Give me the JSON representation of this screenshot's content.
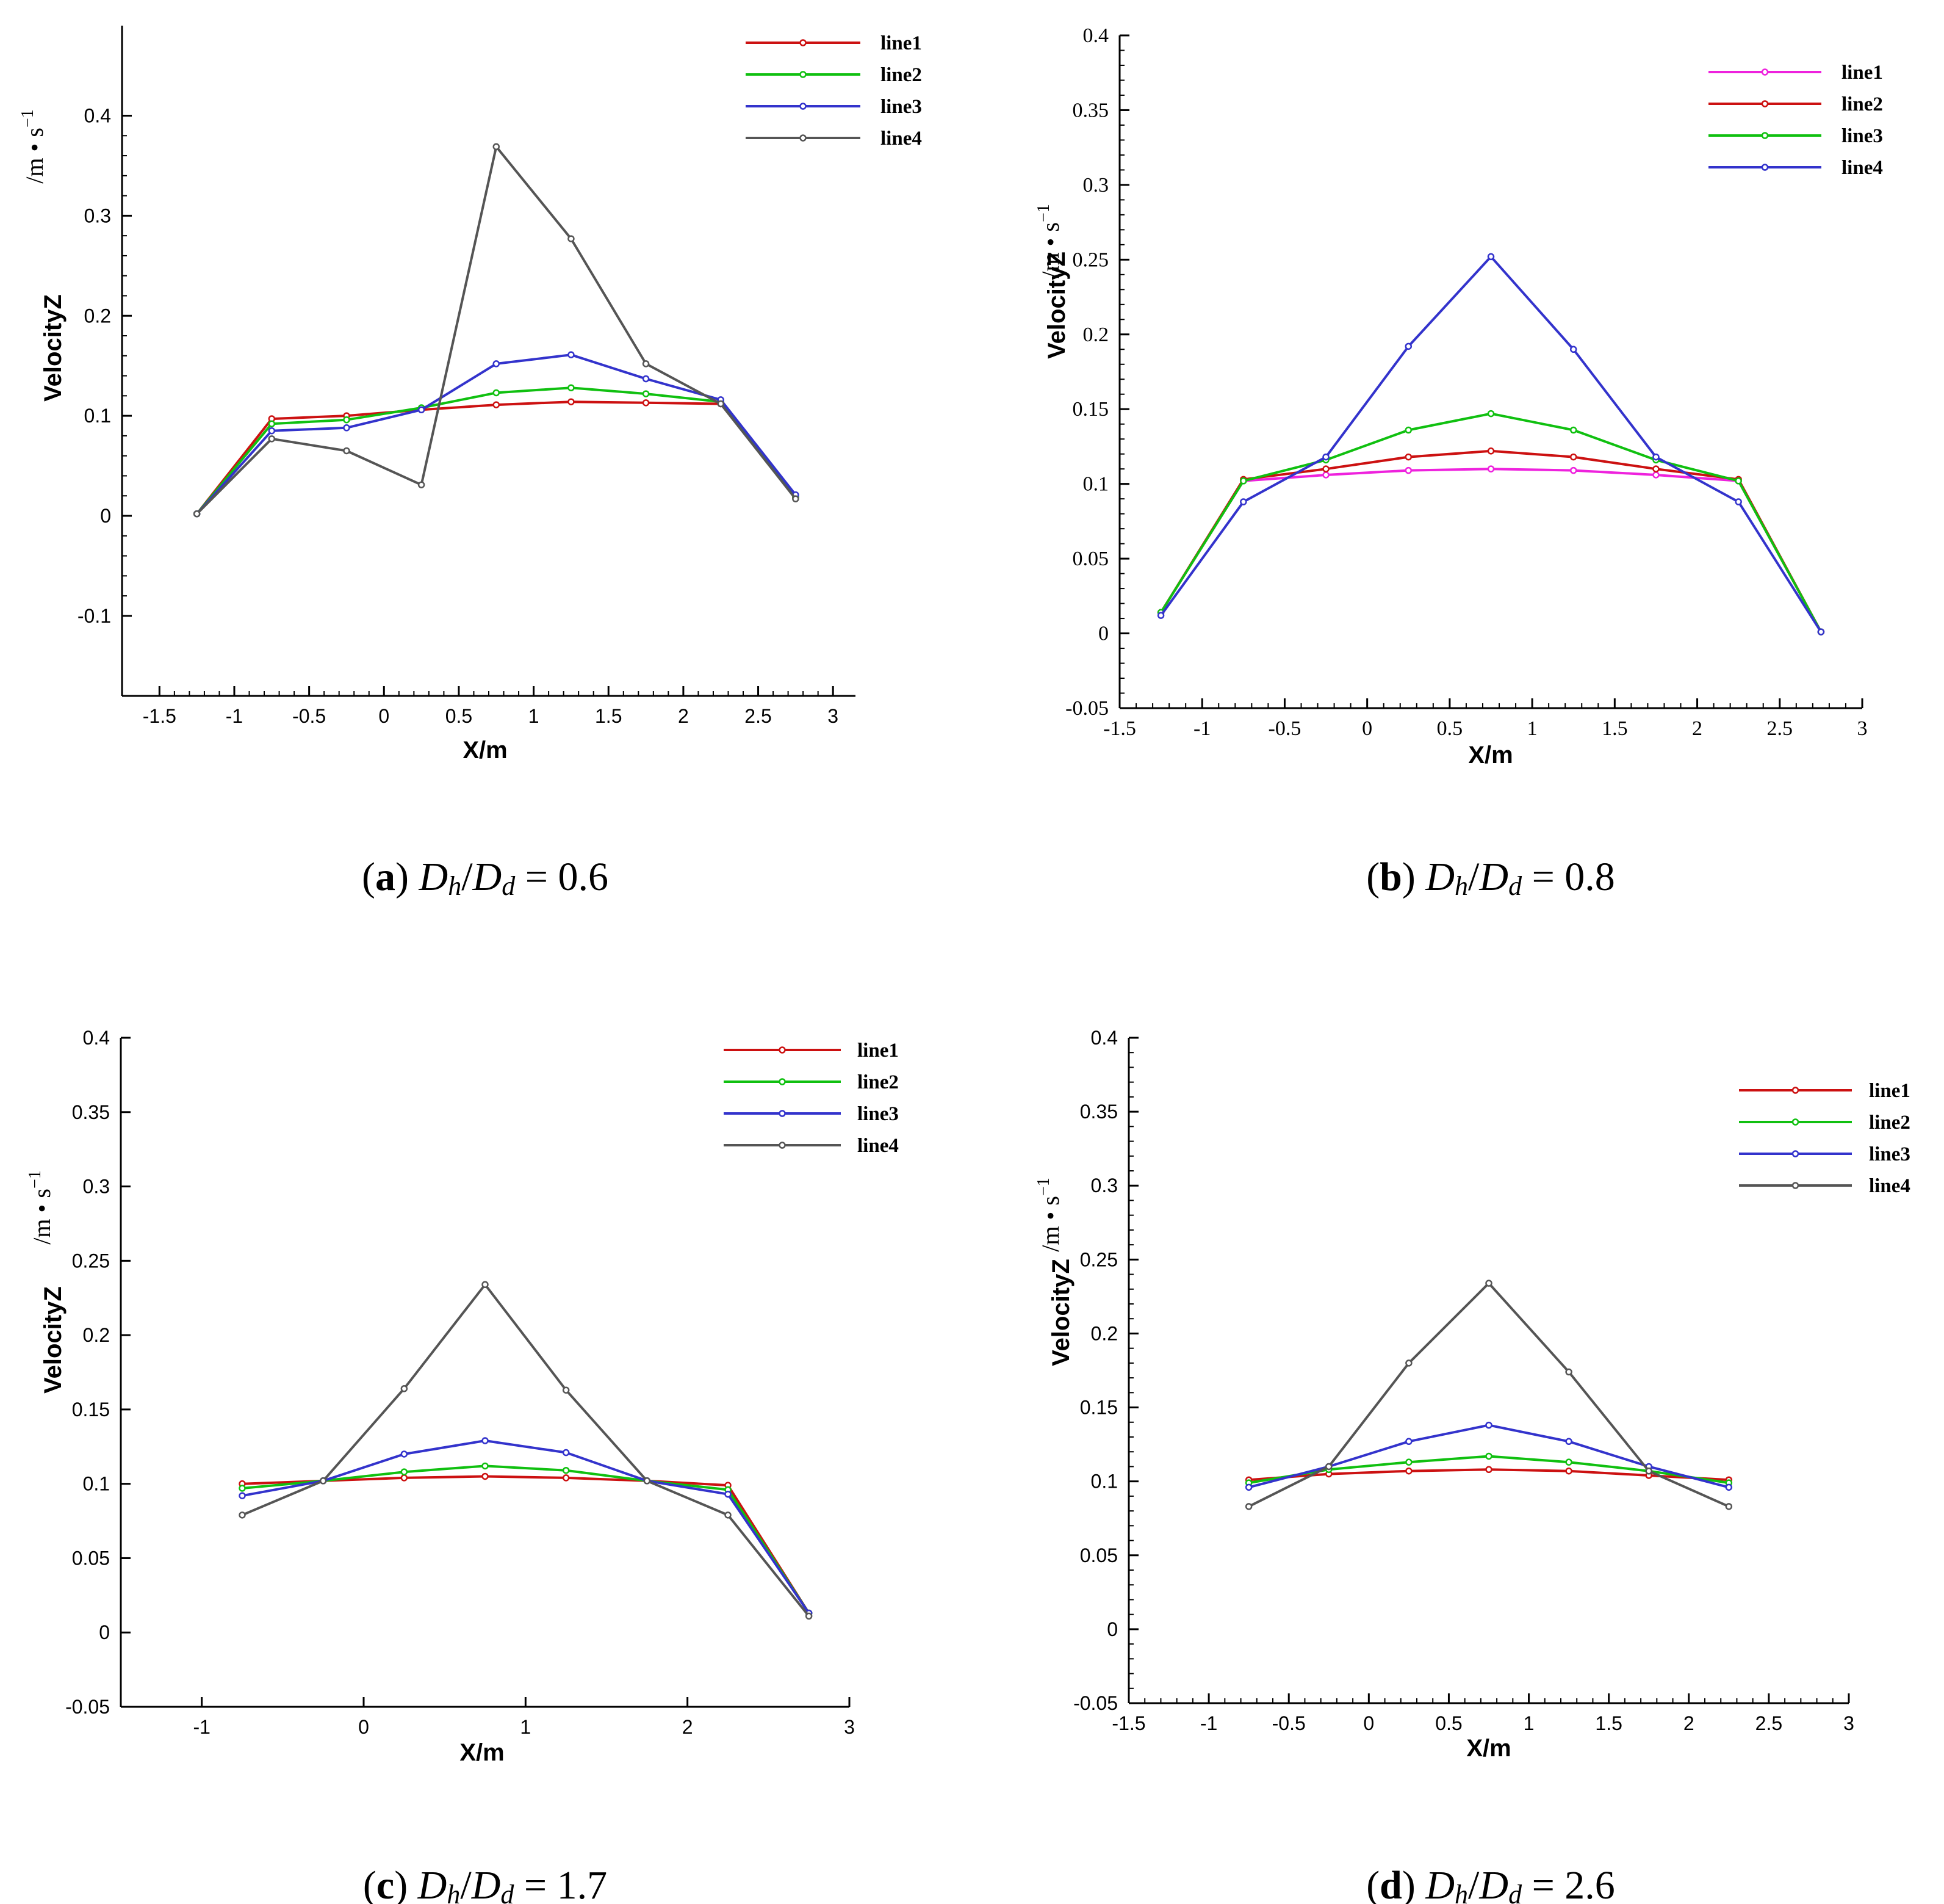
{
  "chart_data": [
    {
      "type": "line",
      "panel": "a",
      "caption": {
        "letter": "a",
        "text": "Dh/Dd = 0.6",
        "ratio_value": "0.6"
      },
      "xlabel": "X/m",
      "ylabel": "VelocityZ",
      "yunit": "/m • s",
      "yunit_exp": "−1",
      "xlim": [
        -1.75,
        3.15
      ],
      "ylim": [
        -0.18,
        0.49
      ],
      "xticks": [
        -1.5,
        -1,
        -0.5,
        0,
        0.5,
        1,
        1.5,
        2,
        2.5,
        3
      ],
      "xtick_labels": [
        "-1.5",
        "-1",
        "-0.5",
        "0",
        "0.5",
        "1",
        "1.5",
        "2",
        "2.5",
        "3"
      ],
      "yticks": [
        -0.1,
        0,
        0.1,
        0.2,
        0.3,
        0.4
      ],
      "ytick_labels": [
        "-0.1",
        "0",
        "0.1",
        "0.2",
        "0.3",
        "0.4"
      ],
      "tick_font": "sans",
      "legend_position": "top-right",
      "series": [
        {
          "name": "line1",
          "color": "#cc1111",
          "x": [
            -1.25,
            -0.75,
            -0.25,
            0.25,
            0.75,
            1.25,
            1.75,
            2.25,
            2.75
          ],
          "values": [
            0.002,
            0.097,
            0.1,
            0.106,
            0.111,
            0.114,
            0.113,
            0.112,
            0.018
          ]
        },
        {
          "name": "line2",
          "color": "#10c010",
          "x": [
            -1.25,
            -0.75,
            -0.25,
            0.25,
            0.75,
            1.25,
            1.75,
            2.25,
            2.75
          ],
          "values": [
            0.002,
            0.092,
            0.096,
            0.108,
            0.123,
            0.128,
            0.122,
            0.114,
            0.019
          ]
        },
        {
          "name": "line3",
          "color": "#3333cc",
          "x": [
            -1.25,
            -0.75,
            -0.25,
            0.25,
            0.75,
            1.25,
            1.75,
            2.25,
            2.75
          ],
          "values": [
            0.002,
            0.085,
            0.088,
            0.106,
            0.152,
            0.161,
            0.137,
            0.116,
            0.021
          ]
        },
        {
          "name": "line4",
          "color": "#555555",
          "x": [
            -1.25,
            -0.75,
            -0.25,
            0.25,
            0.75,
            1.25,
            1.75,
            2.25,
            2.75
          ],
          "values": [
            0.002,
            0.077,
            0.065,
            0.031,
            0.369,
            0.277,
            0.152,
            0.112,
            0.017
          ]
        }
      ]
    },
    {
      "type": "line",
      "panel": "b",
      "caption": {
        "letter": "b",
        "text": "Dh/Dd = 0.8",
        "ratio_value": "0.8"
      },
      "xlabel": "X/m",
      "ylabel": "VelocityZ",
      "yunit": "/m • s",
      "yunit_exp": "−1",
      "xlim": [
        -1.5,
        3
      ],
      "ylim": [
        -0.05,
        0.4
      ],
      "xticks": [
        -1.5,
        -1,
        -0.5,
        0,
        0.5,
        1,
        1.5,
        2,
        2.5,
        3
      ],
      "xtick_labels": [
        "-1.5",
        "-1",
        "-0.5",
        "0",
        "0.5",
        "1",
        "1.5",
        "2",
        "2.5",
        "3"
      ],
      "yticks": [
        -0.05,
        0,
        0.05,
        0.1,
        0.15,
        0.2,
        0.25,
        0.3,
        0.35,
        0.4
      ],
      "ytick_labels": [
        "-0.05",
        "0",
        "0.05",
        "0.1",
        "0.15",
        "0.2",
        "0.25",
        "0.3",
        "0.35",
        "0.4"
      ],
      "tick_font": "serif",
      "legend_position": "top-right",
      "series": [
        {
          "name": "line1",
          "color": "#ee22dd",
          "x": [
            -1.25,
            -0.75,
            -0.25,
            0.25,
            0.75,
            1.25,
            1.75,
            2.25,
            2.75
          ],
          "values": [
            0.014,
            0.102,
            0.106,
            0.109,
            0.11,
            0.109,
            0.106,
            0.102,
            0.001
          ]
        },
        {
          "name": "line2",
          "color": "#cc1111",
          "x": [
            -1.25,
            -0.75,
            -0.25,
            0.25,
            0.75,
            1.25,
            1.75,
            2.25,
            2.75
          ],
          "values": [
            0.014,
            0.103,
            0.11,
            0.118,
            0.122,
            0.118,
            0.11,
            0.103,
            0.001
          ]
        },
        {
          "name": "line3",
          "color": "#10c010",
          "x": [
            -1.25,
            -0.75,
            -0.25,
            0.25,
            0.75,
            1.25,
            1.75,
            2.25,
            2.75
          ],
          "values": [
            0.014,
            0.102,
            0.116,
            0.136,
            0.147,
            0.136,
            0.116,
            0.102,
            0.001
          ]
        },
        {
          "name": "line4",
          "color": "#3333cc",
          "x": [
            -1.25,
            -0.75,
            -0.25,
            0.25,
            0.75,
            1.25,
            1.75,
            2.25,
            2.75
          ],
          "values": [
            0.012,
            0.088,
            0.118,
            0.192,
            0.252,
            0.19,
            0.118,
            0.088,
            0.001
          ]
        }
      ]
    },
    {
      "type": "line",
      "panel": "c",
      "caption": {
        "letter": "c",
        "text": "Dh/Dd = 1.7",
        "ratio_value": "1.7"
      },
      "xlabel": "X/m",
      "ylabel": "VelocityZ",
      "yunit": "/m • s",
      "yunit_exp": "−1",
      "xlim": [
        -1.5,
        3
      ],
      "ylim": [
        -0.05,
        0.4
      ],
      "xticks": [
        -1,
        0,
        1,
        2,
        3
      ],
      "xtick_labels": [
        "-1",
        "0",
        "1",
        "2",
        "3"
      ],
      "yticks": [
        -0.05,
        0,
        0.05,
        0.1,
        0.15,
        0.2,
        0.25,
        0.3,
        0.35,
        0.4
      ],
      "ytick_labels": [
        "-0.05",
        "0",
        "0.05",
        "0.1",
        "0.15",
        "0.2",
        "0.25",
        "0.3",
        "0.35",
        "0.4"
      ],
      "tick_font": "sans",
      "legend_position": "top-right",
      "series": [
        {
          "name": "line1",
          "color": "#cc1111",
          "x": [
            -0.75,
            -0.25,
            0.25,
            0.75,
            1.25,
            1.75,
            2.25,
            2.75
          ],
          "values": [
            0.1,
            0.102,
            0.104,
            0.105,
            0.104,
            0.102,
            0.099,
            0.013
          ]
        },
        {
          "name": "line2",
          "color": "#10c010",
          "x": [
            -0.75,
            -0.25,
            0.25,
            0.75,
            1.25,
            1.75,
            2.25,
            2.75
          ],
          "values": [
            0.097,
            0.102,
            0.108,
            0.112,
            0.109,
            0.102,
            0.096,
            0.013
          ]
        },
        {
          "name": "line3",
          "color": "#3333cc",
          "x": [
            -0.75,
            -0.25,
            0.25,
            0.75,
            1.25,
            1.75,
            2.25,
            2.75
          ],
          "values": [
            0.092,
            0.102,
            0.12,
            0.129,
            0.121,
            0.102,
            0.093,
            0.013
          ]
        },
        {
          "name": "line4",
          "color": "#555555",
          "x": [
            -0.75,
            -0.25,
            0.25,
            0.75,
            1.25,
            1.75,
            2.25,
            2.75
          ],
          "values": [
            0.079,
            0.102,
            0.164,
            0.234,
            0.163,
            0.102,
            0.079,
            0.011
          ]
        }
      ]
    },
    {
      "type": "line",
      "panel": "d",
      "caption": {
        "letter": "d",
        "text": "Dh/Dd = 2.6",
        "ratio_value": "2.6"
      },
      "xlabel": "X/m",
      "ylabel": "VelocityZ",
      "yunit": "/m • s",
      "yunit_exp": "−1",
      "xlim": [
        -1.5,
        3
      ],
      "ylim": [
        -0.05,
        0.4
      ],
      "xticks": [
        -1.5,
        -1,
        -0.5,
        0,
        0.5,
        1,
        1.5,
        2,
        2.5,
        3
      ],
      "xtick_labels": [
        "-1.5",
        "-1",
        "-0.5",
        "0",
        "0.5",
        "1",
        "1.5",
        "2",
        "2.5",
        "3"
      ],
      "yticks": [
        -0.05,
        0,
        0.05,
        0.1,
        0.15,
        0.2,
        0.25,
        0.3,
        0.35,
        0.4
      ],
      "ytick_labels": [
        "-0.05",
        "0",
        "0.05",
        "0.1",
        "0.15",
        "0.2",
        "0.25",
        "0.3",
        "0.35",
        "0.4"
      ],
      "tick_font": "sans",
      "legend_position": "top-right",
      "series": [
        {
          "name": "line1",
          "color": "#cc1111",
          "x": [
            -0.75,
            -0.25,
            0.25,
            0.75,
            1.25,
            1.75,
            2.25
          ],
          "values": [
            0.101,
            0.105,
            0.107,
            0.108,
            0.107,
            0.104,
            0.101
          ]
        },
        {
          "name": "line2",
          "color": "#10c010",
          "x": [
            -0.75,
            -0.25,
            0.25,
            0.75,
            1.25,
            1.75,
            2.25
          ],
          "values": [
            0.099,
            0.108,
            0.113,
            0.117,
            0.113,
            0.107,
            0.099
          ]
        },
        {
          "name": "line3",
          "color": "#3333cc",
          "x": [
            -0.75,
            -0.25,
            0.25,
            0.75,
            1.25,
            1.75,
            2.25
          ],
          "values": [
            0.096,
            0.11,
            0.127,
            0.138,
            0.127,
            0.11,
            0.096
          ]
        },
        {
          "name": "line4",
          "color": "#555555",
          "x": [
            -0.75,
            -0.25,
            0.25,
            0.75,
            1.25,
            1.75,
            2.25
          ],
          "values": [
            0.083,
            0.11,
            0.18,
            0.234,
            0.174,
            0.107,
            0.083
          ]
        }
      ]
    }
  ]
}
